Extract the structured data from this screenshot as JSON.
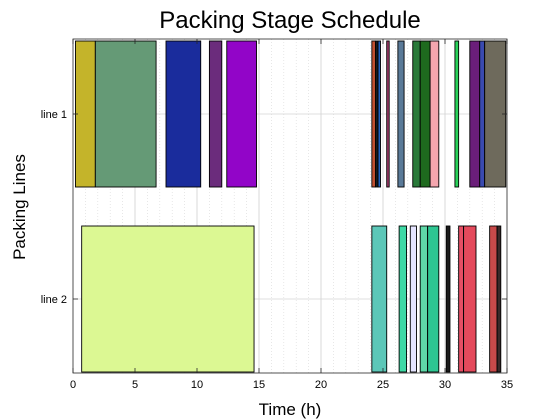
{
  "chart_data": {
    "type": "bar",
    "orientation": "horizontal-gantt",
    "title": "Packing Stage Schedule",
    "xlabel": "Time (h)",
    "ylabel": "Packing Lines",
    "xlim": [
      0,
      35
    ],
    "xticks": [
      0,
      5,
      10,
      15,
      20,
      25,
      30,
      35
    ],
    "grid": true,
    "categories": [
      "line 1",
      "line 2"
    ],
    "tasks": [
      {
        "line": "line 1",
        "start": 0.2,
        "end": 1.8,
        "color": "#c4b42a"
      },
      {
        "line": "line 1",
        "start": 1.8,
        "end": 6.7,
        "color": "#659a76"
      },
      {
        "line": "line 1",
        "start": 7.5,
        "end": 10.3,
        "color": "#1a2c9c"
      },
      {
        "line": "line 1",
        "start": 11.0,
        "end": 12.0,
        "color": "#6b2c7c"
      },
      {
        "line": "line 1",
        "start": 12.4,
        "end": 14.8,
        "color": "#9205c8"
      },
      {
        "line": "line 1",
        "start": 24.1,
        "end": 24.4,
        "color": "#c05030"
      },
      {
        "line": "line 1",
        "start": 24.4,
        "end": 24.6,
        "color": "#1a1a1a"
      },
      {
        "line": "line 1",
        "start": 24.6,
        "end": 24.8,
        "color": "#2060c0"
      },
      {
        "line": "line 1",
        "start": 25.3,
        "end": 25.5,
        "color": "#a03a6a"
      },
      {
        "line": "line 1",
        "start": 26.2,
        "end": 26.7,
        "color": "#5a7a98"
      },
      {
        "line": "line 1",
        "start": 27.4,
        "end": 28.0,
        "color": "#2a7a3a"
      },
      {
        "line": "line 1",
        "start": 28.0,
        "end": 28.8,
        "color": "#1e6a1e"
      },
      {
        "line": "line 1",
        "start": 28.8,
        "end": 29.5,
        "color": "#f4a6ae"
      },
      {
        "line": "line 1",
        "start": 30.8,
        "end": 31.1,
        "color": "#2ad15a"
      },
      {
        "line": "line 1",
        "start": 32.0,
        "end": 32.8,
        "color": "#6b1e7a"
      },
      {
        "line": "line 1",
        "start": 32.8,
        "end": 33.2,
        "color": "#3a4ab0"
      },
      {
        "line": "line 1",
        "start": 33.2,
        "end": 34.9,
        "color": "#6e6a5c"
      },
      {
        "line": "line 2",
        "start": 0.7,
        "end": 14.6,
        "color": "#dcf893"
      },
      {
        "line": "line 2",
        "start": 24.1,
        "end": 25.3,
        "color": "#5cc7b8"
      },
      {
        "line": "line 2",
        "start": 26.3,
        "end": 26.9,
        "color": "#3ed9a5"
      },
      {
        "line": "line 2",
        "start": 27.2,
        "end": 27.7,
        "color": "#e4e4ff"
      },
      {
        "line": "line 2",
        "start": 28.0,
        "end": 28.6,
        "color": "#5fd8a8"
      },
      {
        "line": "line 2",
        "start": 28.6,
        "end": 29.5,
        "color": "#2ec692"
      },
      {
        "line": "line 2",
        "start": 30.1,
        "end": 30.4,
        "color": "#1a1a1a"
      },
      {
        "line": "line 2",
        "start": 31.1,
        "end": 31.5,
        "color": "#e64e64"
      },
      {
        "line": "line 2",
        "start": 31.5,
        "end": 32.5,
        "color": "#e44a5c"
      },
      {
        "line": "line 2",
        "start": 33.6,
        "end": 34.2,
        "color": "#c84a4a"
      },
      {
        "line": "line 2",
        "start": 34.2,
        "end": 34.5,
        "color": "#3a2a2a"
      }
    ]
  }
}
